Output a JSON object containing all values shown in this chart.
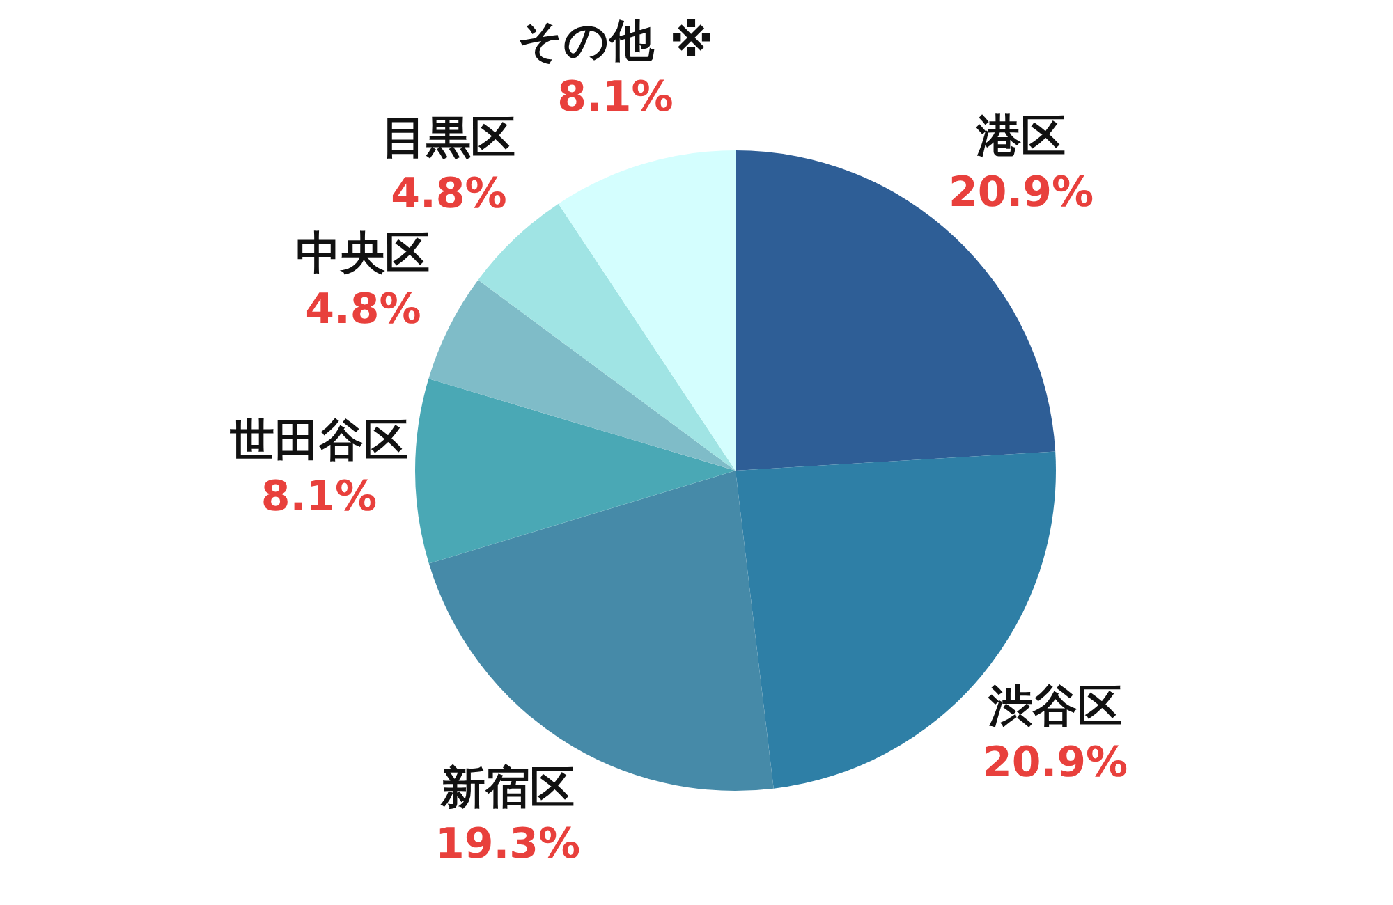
{
  "chart_data": {
    "type": "pie",
    "categories": [
      "港区",
      "渋谷区",
      "新宿区",
      "世田谷区",
      "中央区",
      "目黒区",
      "その他 ※"
    ],
    "values": [
      20.9,
      20.9,
      19.3,
      8.1,
      4.8,
      4.8,
      8.1
    ],
    "value_labels": [
      "20.9%",
      "20.9%",
      "19.3%",
      "8.1%",
      "4.8%",
      "4.8%",
      "8.1%"
    ],
    "colors": [
      "#2e5e96",
      "#2e7fa6",
      "#468aa8",
      "#4aa8b5",
      "#7fbcc8",
      "#a0e4e4",
      "#d4fefe"
    ],
    "legend": false
  }
}
